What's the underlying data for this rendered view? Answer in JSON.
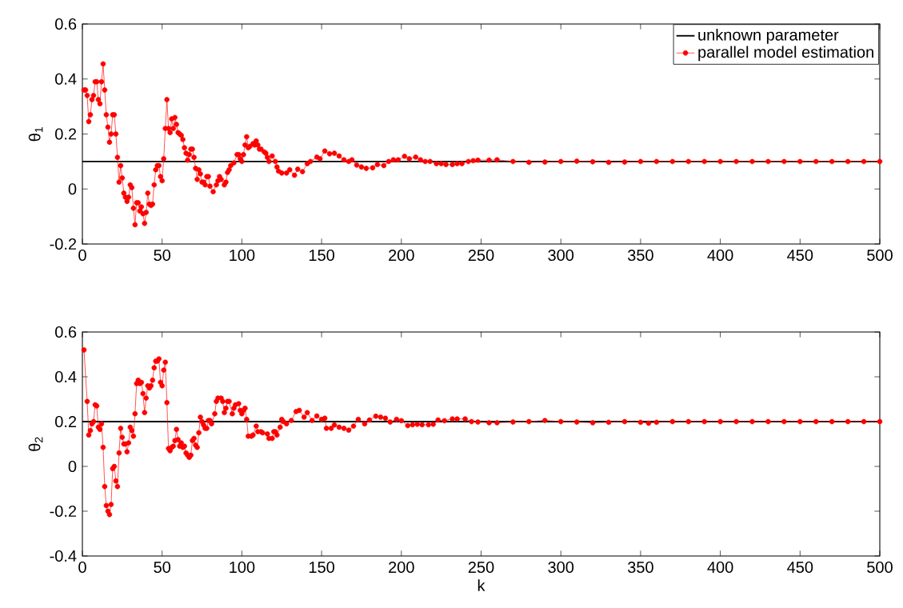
{
  "chart_data": [
    {
      "type": "line",
      "ylabel": "θ$_{1}$",
      "xlim": [
        0,
        500
      ],
      "ylim": [
        -0.2,
        0.6
      ],
      "xticks": [
        0,
        50,
        100,
        150,
        200,
        250,
        300,
        350,
        400,
        450,
        500
      ],
      "yticks": [
        -0.2,
        0,
        0.2,
        0.4,
        0.6
      ],
      "legend": "top right",
      "line_style": "solid",
      "series": [
        {
          "name": "unknown parameter",
          "color": "#000000",
          "marker": "none",
          "x": [
            0,
            500
          ],
          "values": [
            0.1,
            0.1
          ]
        },
        {
          "name": "parallel model estimation",
          "color": "#ff0000",
          "marker": "circle",
          "x": [
            1,
            2,
            3,
            4,
            5,
            6,
            7,
            8,
            9,
            10,
            11,
            12,
            13,
            14,
            15,
            16,
            17,
            18,
            19,
            20,
            21,
            22,
            23,
            24,
            25,
            26,
            27,
            28,
            29,
            30,
            31,
            32,
            33,
            34,
            35,
            36,
            37,
            38,
            39,
            40,
            41,
            42,
            43,
            44,
            45,
            46,
            47,
            48,
            49,
            50,
            51,
            52,
            53,
            54,
            55,
            56,
            57,
            58,
            59,
            60,
            61,
            62,
            63,
            64,
            65,
            66,
            67,
            68,
            69,
            70,
            71,
            72,
            73,
            74,
            75,
            76,
            77,
            78,
            79,
            80,
            82,
            84,
            85,
            86,
            87,
            89,
            90,
            91,
            92,
            93,
            95,
            97,
            98,
            99,
            100,
            101,
            102,
            103,
            104,
            105,
            107,
            108,
            109,
            110,
            111,
            112,
            114,
            115,
            116,
            117,
            119,
            121,
            122,
            123,
            125,
            128,
            130,
            133,
            135,
            138,
            141,
            143,
            147,
            149,
            152,
            155,
            158,
            161,
            164,
            167,
            169,
            172,
            175,
            178,
            182,
            185,
            189,
            192,
            195,
            198,
            202,
            205,
            209,
            212,
            215,
            218,
            222,
            225,
            228,
            232,
            235,
            238,
            242,
            245,
            248,
            255,
            260,
            270,
            280,
            290,
            300,
            310,
            320,
            330,
            340,
            350,
            360,
            370,
            380,
            390,
            400,
            410,
            420,
            430,
            440,
            450,
            460,
            470,
            480,
            490,
            500
          ],
          "values": [
            0.36,
            0.36,
            0.34,
            0.245,
            0.27,
            0.325,
            0.34,
            0.39,
            0.39,
            0.325,
            0.31,
            0.39,
            0.455,
            0.36,
            0.27,
            0.225,
            0.17,
            0.2,
            0.27,
            0.27,
            0.2,
            0.115,
            0.025,
            0.085,
            0.04,
            -0.015,
            -0.03,
            -0.045,
            -0.03,
            0.015,
            0.005,
            -0.07,
            -0.13,
            -0.05,
            -0.05,
            -0.08,
            -0.065,
            -0.09,
            -0.125,
            -0.085,
            -0.015,
            -0.055,
            -0.06,
            -0.055,
            0.015,
            0.07,
            0.085,
            0.085,
            0.045,
            0.03,
            0.11,
            0.22,
            0.325,
            0.22,
            0.205,
            0.255,
            0.22,
            0.26,
            0.235,
            0.205,
            0.2,
            0.195,
            0.18,
            0.15,
            0.13,
            0.105,
            0.125,
            0.145,
            0.145,
            0.115,
            0.075,
            0.035,
            0.07,
            0.055,
            0.025,
            0.025,
            0.015,
            0.045,
            0.045,
            0.01,
            -0.01,
            0.015,
            0.03,
            0.045,
            0.035,
            0.015,
            0.025,
            0.06,
            0.07,
            0.085,
            0.095,
            0.125,
            0.125,
            0.11,
            0.1,
            0.125,
            0.16,
            0.19,
            0.15,
            0.155,
            0.165,
            0.16,
            0.175,
            0.16,
            0.145,
            0.145,
            0.135,
            0.13,
            0.115,
            0.1,
            0.12,
            0.1,
            0.08,
            0.065,
            0.058,
            0.058,
            0.07,
            0.05,
            0.072,
            0.063,
            0.092,
            0.1,
            0.116,
            0.11,
            0.138,
            0.128,
            0.13,
            0.12,
            0.106,
            0.1,
            0.106,
            0.087,
            0.08,
            0.075,
            0.077,
            0.089,
            0.085,
            0.1,
            0.106,
            0.106,
            0.119,
            0.11,
            0.116,
            0.106,
            0.1,
            0.1,
            0.092,
            0.092,
            0.089,
            0.089,
            0.092,
            0.092,
            0.1,
            0.103,
            0.105,
            0.105,
            0.106,
            0.1,
            0.097,
            0.098,
            0.1,
            0.101,
            0.099,
            0.097,
            0.098,
            0.1,
            0.1,
            0.1,
            0.1,
            0.1,
            0.1,
            0.1,
            0.1,
            0.1,
            0.1,
            0.1,
            0.1,
            0.1,
            0.1,
            0.1,
            0.1
          ]
        }
      ]
    },
    {
      "type": "line",
      "xlabel": "k",
      "ylabel": "θ$_{2}$",
      "xlim": [
        0,
        500
      ],
      "ylim": [
        -0.4,
        0.6
      ],
      "xticks": [
        0,
        50,
        100,
        150,
        200,
        250,
        300,
        350,
        400,
        450,
        500
      ],
      "yticks": [
        -0.4,
        -0.2,
        0,
        0.2,
        0.4,
        0.6
      ],
      "line_style": "solid",
      "series": [
        {
          "color": "#000000",
          "marker": "none",
          "x": [
            0,
            500
          ],
          "values": [
            0.2,
            0.2
          ]
        },
        {
          "color": "#ff0000",
          "marker": "circle",
          "x": [
            1,
            3,
            4,
            5,
            6,
            7,
            8,
            9,
            10,
            11,
            12,
            13,
            14,
            15,
            16,
            17,
            18,
            19,
            20,
            21,
            22,
            23,
            24,
            25,
            26,
            27,
            28,
            29,
            30,
            31,
            32,
            33,
            34,
            35,
            36,
            37,
            38,
            39,
            40,
            41,
            42,
            43,
            44,
            45,
            46,
            47,
            48,
            49,
            50,
            51,
            52,
            53,
            54,
            55,
            56,
            57,
            58,
            59,
            60,
            61,
            62,
            63,
            64,
            65,
            66,
            67,
            68,
            69,
            70,
            71,
            72,
            73,
            74,
            75,
            76,
            77,
            78,
            79,
            80,
            81,
            83,
            84,
            85,
            87,
            88,
            89,
            90,
            91,
            92,
            94,
            95,
            96,
            98,
            99,
            100,
            101,
            102,
            103,
            104,
            106,
            107,
            109,
            110,
            112,
            113,
            116,
            117,
            119,
            120,
            121,
            122,
            124,
            125,
            126,
            128,
            131,
            134,
            136,
            139,
            141,
            144,
            147,
            150,
            152,
            153,
            156,
            158,
            161,
            164,
            167,
            170,
            173,
            177,
            180,
            184,
            187,
            190,
            193,
            197,
            200,
            204,
            207,
            210,
            213,
            217,
            220,
            223,
            227,
            232,
            235,
            240,
            244,
            248,
            255,
            260,
            270,
            280,
            290,
            300,
            310,
            320,
            330,
            340,
            350,
            355,
            360,
            370,
            380,
            390,
            400,
            410,
            420,
            430,
            440,
            450,
            460,
            470,
            480,
            490,
            500
          ],
          "values": [
            0.52,
            0.29,
            0.14,
            0.16,
            0.19,
            0.2,
            0.275,
            0.27,
            0.175,
            0.165,
            0.19,
            0.085,
            -0.09,
            -0.175,
            -0.2,
            -0.215,
            -0.17,
            -0.01,
            0,
            -0.065,
            -0.09,
            0.06,
            0.17,
            0.13,
            0.1,
            0.1,
            0.065,
            0.105,
            0.175,
            0.16,
            0.135,
            0.235,
            0.37,
            0.385,
            0.37,
            0.375,
            0.325,
            0.24,
            0.305,
            0.36,
            0.35,
            0.36,
            0.385,
            0.44,
            0.47,
            0.47,
            0.48,
            0.375,
            0.36,
            0.43,
            0.465,
            0.285,
            0.08,
            0.07,
            0.085,
            0.09,
            0.115,
            0.165,
            0.12,
            0.09,
            0.105,
            0.085,
            0.09,
            0.06,
            0.05,
            0.04,
            0.05,
            0.115,
            0.125,
            0.095,
            0.085,
            0.15,
            0.22,
            0.2,
            0.185,
            0.17,
            0.17,
            0.205,
            0.205,
            0.19,
            0.235,
            0.29,
            0.305,
            0.305,
            0.29,
            0.24,
            0.26,
            0.29,
            0.29,
            0.235,
            0.26,
            0.275,
            0.28,
            0.25,
            0.235,
            0.25,
            0.26,
            0.21,
            0.135,
            0.135,
            0.14,
            0.18,
            0.155,
            0.155,
            0.15,
            0.145,
            0.125,
            0.125,
            0.155,
            0.155,
            0.14,
            0.175,
            0.21,
            0.2,
            0.19,
            0.205,
            0.245,
            0.25,
            0.22,
            0.24,
            0.205,
            0.225,
            0.21,
            0.215,
            0.17,
            0.17,
            0.185,
            0.175,
            0.17,
            0.162,
            0.18,
            0.21,
            0.19,
            0.207,
            0.224,
            0.22,
            0.215,
            0.198,
            0.21,
            0.204,
            0.182,
            0.186,
            0.188,
            0.186,
            0.186,
            0.188,
            0.207,
            0.204,
            0.212,
            0.212,
            0.212,
            0.2,
            0.198,
            0.195,
            0.195,
            0.198,
            0.2,
            0.205,
            0.2,
            0.198,
            0.195,
            0.197,
            0.2,
            0.197,
            0.193,
            0.197,
            0.2,
            0.2,
            0.2,
            0.2,
            0.2,
            0.2,
            0.2,
            0.2,
            0.2,
            0.2,
            0.2,
            0.2,
            0.2,
            0.2
          ]
        }
      ]
    }
  ]
}
